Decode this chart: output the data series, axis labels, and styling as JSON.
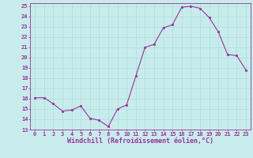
{
  "x": [
    0,
    1,
    2,
    3,
    4,
    5,
    6,
    7,
    8,
    9,
    10,
    11,
    12,
    13,
    14,
    15,
    16,
    17,
    18,
    19,
    20,
    21,
    22,
    23
  ],
  "y": [
    16.1,
    16.1,
    15.5,
    14.8,
    14.9,
    15.3,
    14.1,
    13.9,
    13.3,
    15.0,
    15.4,
    18.2,
    21.0,
    21.3,
    22.9,
    23.2,
    24.9,
    25.0,
    24.8,
    23.9,
    22.5,
    20.3,
    20.2,
    18.8
  ],
  "line_color": "#993399",
  "marker_color": "#993399",
  "bg_color": "#c8ecec",
  "grid_color": "#aadddd",
  "xlabel": "Windchill (Refroidissement éolien,°C)",
  "ylim": [
    13,
    25
  ],
  "xlim": [
    -0.5,
    23.5
  ],
  "yticks": [
    13,
    14,
    15,
    16,
    17,
    18,
    19,
    20,
    21,
    22,
    23,
    24,
    25
  ],
  "xticks": [
    0,
    1,
    2,
    3,
    4,
    5,
    6,
    7,
    8,
    9,
    10,
    11,
    12,
    13,
    14,
    15,
    16,
    17,
    18,
    19,
    20,
    21,
    22,
    23
  ],
  "tick_color": "#993399",
  "label_color": "#993399",
  "tick_fontsize": 5.0,
  "xlabel_fontsize": 6.0
}
